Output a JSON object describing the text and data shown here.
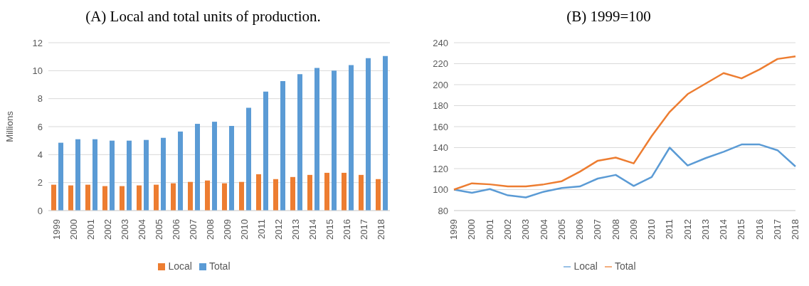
{
  "chart_data": [
    {
      "type": "bar",
      "title": "(A) Local and total units of production.",
      "ylabel": "Millions",
      "categories": [
        "1999",
        "2000",
        "2001",
        "2002",
        "2003",
        "2004",
        "2005",
        "2006",
        "2007",
        "2008",
        "2009",
        "2010",
        "2011",
        "2012",
        "2013",
        "2014",
        "2015",
        "2016",
        "2017",
        "2018"
      ],
      "series": [
        {
          "name": "Local",
          "color": "#ed7d31",
          "values": [
            1.85,
            1.8,
            1.85,
            1.75,
            1.75,
            1.8,
            1.85,
            1.95,
            2.05,
            2.15,
            1.95,
            2.05,
            2.6,
            2.25,
            2.4,
            2.55,
            2.7,
            2.7,
            2.55,
            2.25
          ]
        },
        {
          "name": "Total",
          "color": "#5b9bd5",
          "values": [
            4.85,
            5.1,
            5.1,
            5.0,
            5.0,
            5.05,
            5.2,
            5.65,
            6.2,
            6.35,
            6.05,
            7.35,
            8.5,
            9.25,
            9.75,
            10.2,
            10.0,
            10.4,
            10.9,
            11.05
          ]
        }
      ],
      "ylim": [
        0,
        12
      ],
      "yticks": [
        0,
        2,
        4,
        6,
        8,
        10,
        12
      ],
      "grid": "y",
      "legend": "bottom"
    },
    {
      "type": "line",
      "title": "(B) 1999=100",
      "categories": [
        "1999",
        "2000",
        "2001",
        "2002",
        "2003",
        "2004",
        "2005",
        "2006",
        "2007",
        "2008",
        "2009",
        "2010",
        "2011",
        "2012",
        "2013",
        "2014",
        "2015",
        "2016",
        "2017",
        "2018"
      ],
      "series": [
        {
          "name": "Local",
          "color": "#5b9bd5",
          "values": [
            100,
            97,
            100.5,
            94.5,
            92.5,
            98,
            101.5,
            103,
            110.5,
            114,
            103.5,
            112,
            140,
            123,
            130,
            136,
            143,
            143,
            137.5,
            122
          ]
        },
        {
          "name": "Total",
          "color": "#ed7d31",
          "values": [
            100,
            106,
            105,
            103,
            103,
            105,
            108,
            117,
            127.5,
            130.5,
            125,
            151,
            174,
            191,
            201,
            211,
            206,
            214.5,
            224.5,
            227
          ]
        }
      ],
      "ylim": [
        80,
        240
      ],
      "yticks": [
        80,
        100,
        120,
        140,
        160,
        180,
        200,
        220,
        240
      ],
      "grid": "y",
      "legend": "bottom",
      "marker": "none"
    }
  ]
}
